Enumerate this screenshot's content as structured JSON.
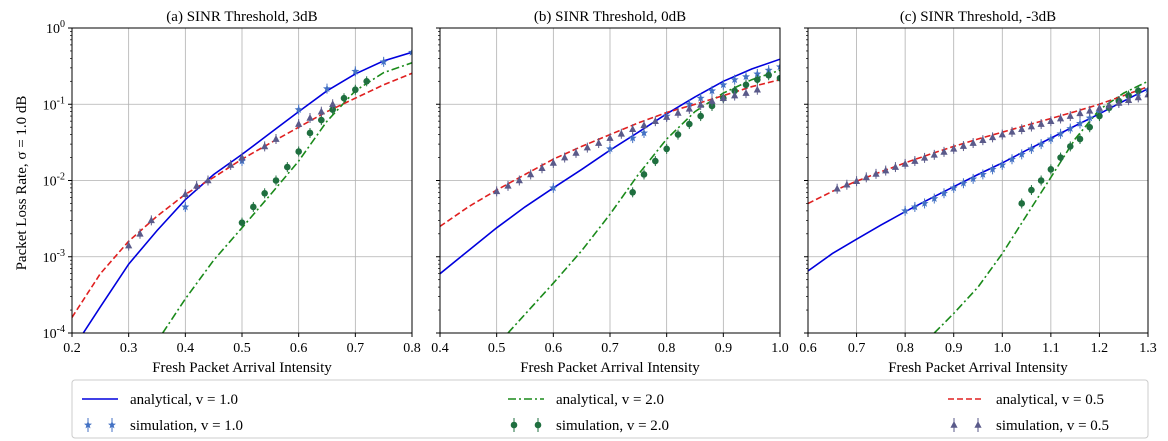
{
  "figure": {
    "ylabel": "Packet Loss Rate, σ = 1.0 dB",
    "legend": [
      {
        "label": "analytical, v = 1.0",
        "style": "solid",
        "color": "#0000dd",
        "marker": "none"
      },
      {
        "label": "simulation, v = 1.0",
        "style": "errorbar",
        "color": "#4472c4",
        "marker": "star"
      },
      {
        "label": "analytical, v = 2.0",
        "style": "dashdot",
        "color": "#1a8a1a",
        "marker": "none"
      },
      {
        "label": "simulation, v = 2.0",
        "style": "errorbar",
        "color": "#1f6f3f",
        "marker": "circle"
      },
      {
        "label": "analytical, v = 0.5",
        "style": "dashed",
        "color": "#e02020",
        "marker": "none"
      },
      {
        "label": "simulation, v = 0.5",
        "style": "errorbar",
        "color": "#5a5a8a",
        "marker": "triangle"
      }
    ]
  },
  "chart_data": [
    {
      "type": "line",
      "title": "(a) SINR Threshold, 3dB",
      "xlabel": "Fresh Packet Arrival Intensity",
      "ylabel": "Packet Loss Rate, σ = 1.0 dB",
      "xlim": [
        0.2,
        0.8
      ],
      "ylim": [
        0.0001,
        1
      ],
      "yscale": "log",
      "grid": true,
      "xticks": [
        "0.2",
        "0.3",
        "0.4",
        "0.5",
        "0.6",
        "0.7",
        "0.8"
      ],
      "yticks": [
        "10^-4",
        "10^-3",
        "10^-2",
        "10^-1",
        "10^0"
      ],
      "series": [
        {
          "name": "analytical, v = 1.0",
          "kind": "line",
          "style": "solid",
          "color": "#0000dd",
          "x": [
            0.2,
            0.22,
            0.25,
            0.3,
            0.35,
            0.4,
            0.45,
            0.5,
            0.55,
            0.6,
            0.65,
            0.7,
            0.75,
            0.8
          ],
          "y": [
            5e-05,
            0.0001,
            0.00022,
            0.0008,
            0.0022,
            0.0056,
            0.012,
            0.022,
            0.042,
            0.08,
            0.15,
            0.25,
            0.37,
            0.48
          ]
        },
        {
          "name": "simulation, v = 1.0",
          "kind": "scatter",
          "marker": "star",
          "color": "#4472c4",
          "x": [
            0.4,
            0.5,
            0.6,
            0.65,
            0.7,
            0.75,
            0.8
          ],
          "y": [
            0.0045,
            0.018,
            0.085,
            0.16,
            0.27,
            0.36,
            0.48
          ]
        },
        {
          "name": "analytical, v = 2.0",
          "kind": "line",
          "style": "dashdot",
          "color": "#1a8a1a",
          "x": [
            0.36,
            0.4,
            0.45,
            0.5,
            0.55,
            0.6,
            0.65,
            0.7,
            0.75,
            0.8
          ],
          "y": [
            0.0001,
            0.00028,
            0.0009,
            0.0024,
            0.0065,
            0.018,
            0.06,
            0.15,
            0.26,
            0.35
          ]
        },
        {
          "name": "simulation, v = 2.0",
          "kind": "scatter",
          "marker": "circle",
          "color": "#1f6f3f",
          "x": [
            0.5,
            0.52,
            0.54,
            0.56,
            0.58,
            0.6,
            0.62,
            0.64,
            0.66,
            0.68,
            0.7,
            0.72
          ],
          "y": [
            0.0028,
            0.0045,
            0.0068,
            0.01,
            0.015,
            0.024,
            0.042,
            0.062,
            0.085,
            0.12,
            0.155,
            0.2
          ]
        },
        {
          "name": "analytical, v = 0.5",
          "kind": "line",
          "style": "dashed",
          "color": "#e02020",
          "x": [
            0.2,
            0.25,
            0.3,
            0.35,
            0.4,
            0.45,
            0.5,
            0.55,
            0.6,
            0.65,
            0.7,
            0.75,
            0.8
          ],
          "y": [
            0.00016,
            0.0006,
            0.0016,
            0.0034,
            0.0066,
            0.011,
            0.019,
            0.031,
            0.05,
            0.08,
            0.12,
            0.18,
            0.255
          ]
        },
        {
          "name": "simulation, v = 0.5",
          "kind": "scatter",
          "marker": "triangle",
          "color": "#5a5a8a",
          "x": [
            0.3,
            0.32,
            0.34,
            0.4,
            0.42,
            0.44,
            0.48,
            0.5,
            0.54,
            0.56,
            0.6,
            0.62,
            0.64,
            0.66
          ],
          "y": [
            0.0014,
            0.002,
            0.003,
            0.0066,
            0.0085,
            0.01,
            0.016,
            0.02,
            0.028,
            0.035,
            0.055,
            0.066,
            0.08,
            0.1
          ]
        }
      ]
    },
    {
      "type": "line",
      "title": "(b) SINR Threshold, 0dB",
      "xlabel": "Fresh Packet Arrival Intensity",
      "ylabel": "",
      "xlim": [
        0.4,
        1.0
      ],
      "ylim": [
        0.0001,
        1
      ],
      "yscale": "log",
      "grid": true,
      "xticks": [
        "0.4",
        "0.5",
        "0.6",
        "0.7",
        "0.8",
        "0.9",
        "1.0"
      ],
      "series": [
        {
          "name": "analytical, v = 1.0",
          "kind": "line",
          "style": "solid",
          "color": "#0000dd",
          "x": [
            0.4,
            0.45,
            0.5,
            0.55,
            0.6,
            0.65,
            0.7,
            0.75,
            0.8,
            0.85,
            0.9,
            0.95,
            1.0
          ],
          "y": [
            0.0006,
            0.0012,
            0.0024,
            0.0045,
            0.008,
            0.014,
            0.025,
            0.043,
            0.075,
            0.125,
            0.2,
            0.29,
            0.39
          ]
        },
        {
          "name": "simulation, v = 1.0",
          "kind": "scatter",
          "marker": "star",
          "color": "#4472c4",
          "x": [
            0.6,
            0.7,
            0.74,
            0.76,
            0.8,
            0.84,
            0.86,
            0.88,
            0.9,
            0.92,
            0.94,
            0.96,
            0.98,
            1.0
          ],
          "y": [
            0.008,
            0.026,
            0.036,
            0.042,
            0.07,
            0.1,
            0.12,
            0.15,
            0.18,
            0.21,
            0.23,
            0.25,
            0.28,
            0.31
          ]
        },
        {
          "name": "analytical, v = 2.0",
          "kind": "line",
          "style": "dashdot",
          "color": "#1a8a1a",
          "x": [
            0.52,
            0.6,
            0.65,
            0.7,
            0.75,
            0.8,
            0.85,
            0.9,
            0.95,
            1.0
          ],
          "y": [
            0.0001,
            0.00045,
            0.0012,
            0.0036,
            0.012,
            0.035,
            0.08,
            0.14,
            0.21,
            0.28
          ]
        },
        {
          "name": "simulation, v = 2.0",
          "kind": "scatter",
          "marker": "circle",
          "color": "#1f6f3f",
          "x": [
            0.74,
            0.76,
            0.78,
            0.8,
            0.82,
            0.84,
            0.86,
            0.88,
            0.9,
            0.92,
            0.94,
            0.96,
            0.98,
            1.0
          ],
          "y": [
            0.007,
            0.012,
            0.018,
            0.026,
            0.04,
            0.055,
            0.07,
            0.095,
            0.12,
            0.15,
            0.18,
            0.21,
            0.24,
            0.22
          ]
        },
        {
          "name": "analytical, v = 0.5",
          "kind": "line",
          "style": "dashed",
          "color": "#e02020",
          "x": [
            0.4,
            0.45,
            0.5,
            0.55,
            0.6,
            0.65,
            0.7,
            0.75,
            0.8,
            0.85,
            0.9,
            0.95,
            1.0
          ],
          "y": [
            0.0025,
            0.0045,
            0.0075,
            0.012,
            0.019,
            0.028,
            0.04,
            0.057,
            0.078,
            0.1,
            0.13,
            0.17,
            0.21
          ]
        },
        {
          "name": "simulation, v = 0.5",
          "kind": "scatter",
          "marker": "triangle",
          "color": "#5a5a8a",
          "x": [
            0.5,
            0.52,
            0.54,
            0.56,
            0.58,
            0.6,
            0.62,
            0.64,
            0.66,
            0.68,
            0.7,
            0.72,
            0.74,
            0.76,
            0.78,
            0.8,
            0.82,
            0.84,
            0.86,
            0.88,
            0.9,
            0.92,
            0.94,
            0.96
          ],
          "y": [
            0.0072,
            0.0085,
            0.01,
            0.012,
            0.0145,
            0.017,
            0.02,
            0.023,
            0.027,
            0.031,
            0.036,
            0.041,
            0.047,
            0.053,
            0.06,
            0.068,
            0.077,
            0.087,
            0.098,
            0.11,
            0.12,
            0.13,
            0.14,
            0.155
          ]
        }
      ]
    },
    {
      "type": "line",
      "title": "(c) SINR Threshold, -3dB",
      "xlabel": "Fresh Packet Arrival Intensity",
      "ylabel": "",
      "xlim": [
        0.6,
        1.3
      ],
      "ylim": [
        0.0001,
        1
      ],
      "yscale": "log",
      "grid": true,
      "xticks": [
        "0.6",
        "0.7",
        "0.8",
        "0.9",
        "1.0",
        "1.1",
        "1.2",
        "1.3"
      ],
      "series": [
        {
          "name": "analytical, v = 1.0",
          "kind": "line",
          "style": "solid",
          "color": "#0000dd",
          "x": [
            0.6,
            0.65,
            0.7,
            0.75,
            0.8,
            0.85,
            0.9,
            0.95,
            1.0,
            1.05,
            1.1,
            1.15,
            1.2,
            1.25,
            1.3
          ],
          "y": [
            0.00065,
            0.0011,
            0.0017,
            0.0026,
            0.0039,
            0.0057,
            0.0083,
            0.012,
            0.017,
            0.025,
            0.036,
            0.052,
            0.075,
            0.11,
            0.16
          ]
        },
        {
          "name": "simulation, v = 1.0",
          "kind": "scatter",
          "marker": "star",
          "color": "#4472c4",
          "x": [
            0.8,
            0.82,
            0.84,
            0.86,
            0.88,
            0.9,
            0.92,
            0.94,
            0.96,
            0.98,
            1.0,
            1.02,
            1.04,
            1.06,
            1.08,
            1.1,
            1.12,
            1.14,
            1.16,
            1.18,
            1.2,
            1.22,
            1.24,
            1.26,
            1.28,
            1.3
          ],
          "y": [
            0.004,
            0.0045,
            0.005,
            0.0058,
            0.0068,
            0.008,
            0.0092,
            0.0105,
            0.012,
            0.014,
            0.016,
            0.019,
            0.022,
            0.026,
            0.03,
            0.035,
            0.041,
            0.048,
            0.056,
            0.066,
            0.078,
            0.092,
            0.11,
            0.125,
            0.14,
            0.155
          ]
        },
        {
          "name": "analytical, v = 2.0",
          "kind": "line",
          "style": "dashdot",
          "color": "#1a8a1a",
          "x": [
            0.86,
            0.9,
            0.95,
            1.0,
            1.05,
            1.1,
            1.15,
            1.2,
            1.25,
            1.3
          ],
          "y": [
            0.0001,
            0.00018,
            0.0004,
            0.0011,
            0.0035,
            0.011,
            0.035,
            0.085,
            0.14,
            0.2
          ]
        },
        {
          "name": "simulation, v = 2.0",
          "kind": "scatter",
          "marker": "circle",
          "color": "#1f6f3f",
          "x": [
            1.04,
            1.06,
            1.08,
            1.1,
            1.12,
            1.14,
            1.16,
            1.18,
            1.2,
            1.22,
            1.24,
            1.26,
            1.28
          ],
          "y": [
            0.005,
            0.0075,
            0.01,
            0.014,
            0.02,
            0.028,
            0.035,
            0.05,
            0.07,
            0.09,
            0.11,
            0.13,
            0.15
          ]
        },
        {
          "name": "analytical, v = 0.5",
          "kind": "line",
          "style": "dashed",
          "color": "#e02020",
          "x": [
            0.6,
            0.65,
            0.7,
            0.75,
            0.8,
            0.85,
            0.9,
            0.95,
            1.0,
            1.05,
            1.1,
            1.15,
            1.2,
            1.25,
            1.3
          ],
          "y": [
            0.005,
            0.0072,
            0.0098,
            0.013,
            0.017,
            0.022,
            0.028,
            0.035,
            0.043,
            0.053,
            0.065,
            0.08,
            0.1,
            0.13,
            0.17
          ]
        },
        {
          "name": "simulation, v = 0.5",
          "kind": "scatter",
          "marker": "triangle",
          "color": "#5a5a8a",
          "x": [
            0.66,
            0.68,
            0.7,
            0.72,
            0.74,
            0.76,
            0.78,
            0.8,
            0.82,
            0.84,
            0.86,
            0.88,
            0.9,
            0.92,
            0.94,
            0.96,
            0.98,
            1.0,
            1.02,
            1.04,
            1.06,
            1.08,
            1.1,
            1.12,
            1.14,
            1.16,
            1.18,
            1.2,
            1.22,
            1.24,
            1.26,
            1.28,
            1.3
          ],
          "y": [
            0.0078,
            0.0088,
            0.0098,
            0.011,
            0.0122,
            0.0135,
            0.015,
            0.0165,
            0.018,
            0.0198,
            0.0217,
            0.0237,
            0.026,
            0.0283,
            0.031,
            0.0338,
            0.0368,
            0.04,
            0.0435,
            0.047,
            0.051,
            0.055,
            0.06,
            0.065,
            0.07,
            0.076,
            0.082,
            0.089,
            0.096,
            0.104,
            0.113,
            0.123,
            0.134
          ]
        }
      ]
    }
  ]
}
